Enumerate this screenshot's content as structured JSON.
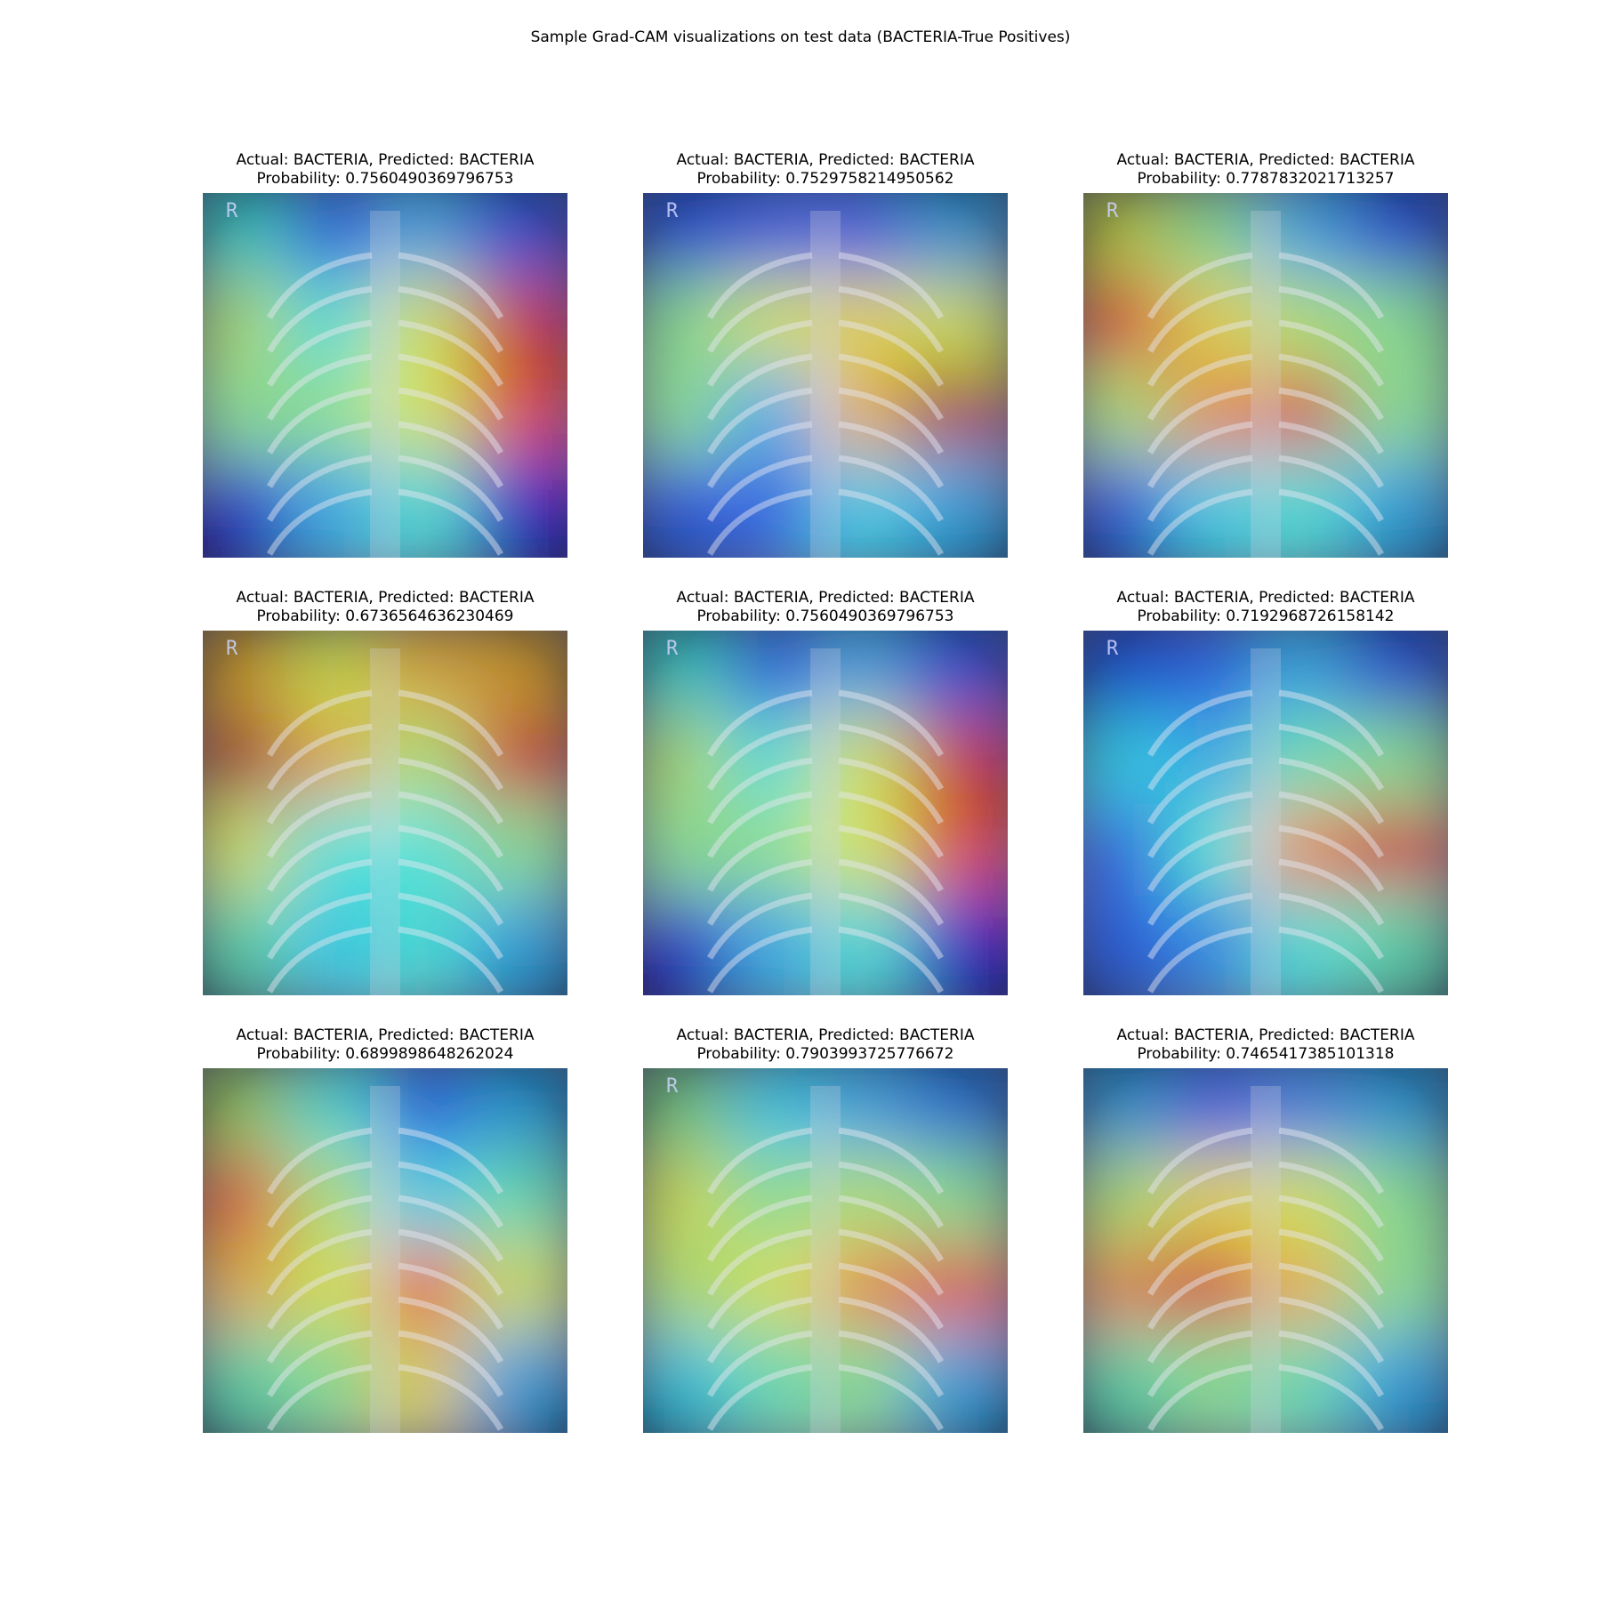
{
  "figure": {
    "suptitle": "Sample Grad-CAM visualizations on test data (BACTERIA-True Positives)"
  },
  "panels": [
    {
      "actual": "BACTERIA",
      "predicted": "BACTERIA",
      "title": "Actual: BACTERIA, Predicted: BACTERIA",
      "probability_text": "Probability: 0.7560490369796753",
      "marker": "R",
      "heat": [
        [
          0.4,
          0.2,
          0.3,
          0.2
        ],
        [
          0.55,
          0.4,
          0.6,
          0.9
        ],
        [
          0.5,
          0.5,
          0.6,
          0.85
        ],
        [
          0.1,
          0.3,
          0.4,
          0.1
        ]
      ]
    },
    {
      "actual": "BACTERIA",
      "predicted": "BACTERIA",
      "title": "Actual: BACTERIA, Predicted: BACTERIA",
      "probability_text": "Probability: 0.7529758214950562",
      "marker": "R",
      "heat": [
        [
          0.2,
          0.2,
          0.2,
          0.3
        ],
        [
          0.5,
          0.6,
          0.65,
          0.6
        ],
        [
          0.5,
          0.3,
          0.7,
          0.95
        ],
        [
          0.2,
          0.2,
          0.35,
          0.3
        ]
      ]
    },
    {
      "actual": "BACTERIA",
      "predicted": "BACTERIA",
      "title": "Actual: BACTERIA, Predicted: BACTERIA",
      "probability_text": "Probability: 0.7787832021713257",
      "marker": "R",
      "heat": [
        [
          0.6,
          0.5,
          0.3,
          0.2
        ],
        [
          0.85,
          0.65,
          0.55,
          0.5
        ],
        [
          0.55,
          0.75,
          0.9,
          0.5
        ],
        [
          0.2,
          0.35,
          0.4,
          0.3
        ]
      ]
    },
    {
      "actual": "BACTERIA",
      "predicted": "BACTERIA",
      "title": "Actual: BACTERIA, Predicted: BACTERIA",
      "probability_text": "Probability: 0.6736564636230469",
      "marker": "R",
      "heat": [
        [
          0.7,
          0.6,
          0.7,
          0.7
        ],
        [
          0.95,
          0.7,
          0.55,
          0.9
        ],
        [
          0.6,
          0.4,
          0.4,
          0.5
        ],
        [
          0.45,
          0.35,
          0.4,
          0.3
        ]
      ]
    },
    {
      "actual": "BACTERIA",
      "predicted": "BACTERIA",
      "title": "Actual: BACTERIA, Predicted: BACTERIA",
      "probability_text": "Probability: 0.7560490369796753",
      "marker": "R",
      "heat": [
        [
          0.4,
          0.2,
          0.3,
          0.2
        ],
        [
          0.55,
          0.4,
          0.6,
          0.9
        ],
        [
          0.5,
          0.5,
          0.6,
          0.85
        ],
        [
          0.1,
          0.3,
          0.4,
          0.1
        ]
      ]
    },
    {
      "actual": "BACTERIA",
      "predicted": "BACTERIA",
      "title": "Actual: BACTERIA, Predicted: BACTERIA",
      "probability_text": "Probability: 0.7192968726158142",
      "marker": "R",
      "heat": [
        [
          0.2,
          0.2,
          0.3,
          0.2
        ],
        [
          0.35,
          0.3,
          0.45,
          0.5
        ],
        [
          0.2,
          0.4,
          0.75,
          0.9
        ],
        [
          0.2,
          0.25,
          0.4,
          0.45
        ]
      ]
    },
    {
      "actual": "BACTERIA",
      "predicted": "BACTERIA",
      "title": "Actual: BACTERIA, Predicted: BACTERIA",
      "probability_text": "Probability: 0.6899898648262024",
      "marker": "",
      "heat": [
        [
          0.55,
          0.4,
          0.2,
          0.3
        ],
        [
          0.8,
          0.55,
          0.35,
          0.45
        ],
        [
          0.7,
          0.6,
          0.85,
          0.6
        ],
        [
          0.45,
          0.5,
          0.65,
          0.3
        ]
      ]
    },
    {
      "actual": "BACTERIA",
      "predicted": "BACTERIA",
      "title": "Actual: BACTERIA, Predicted: BACTERIA",
      "probability_text": "Probability: 0.7903993725776672",
      "marker": "R",
      "heat": [
        [
          0.5,
          0.35,
          0.3,
          0.25
        ],
        [
          0.6,
          0.5,
          0.55,
          0.5
        ],
        [
          0.55,
          0.6,
          0.75,
          0.8
        ],
        [
          0.35,
          0.45,
          0.5,
          0.3
        ]
      ]
    },
    {
      "actual": "BACTERIA",
      "predicted": "BACTERIA",
      "title": "Actual: BACTERIA, Predicted: BACTERIA",
      "probability_text": "Probability: 0.7465417385101318",
      "marker": "",
      "heat": [
        [
          0.3,
          0.2,
          0.25,
          0.3
        ],
        [
          0.55,
          0.65,
          0.6,
          0.5
        ],
        [
          0.75,
          0.9,
          0.7,
          0.5
        ],
        [
          0.45,
          0.5,
          0.45,
          0.3
        ]
      ]
    }
  ]
}
